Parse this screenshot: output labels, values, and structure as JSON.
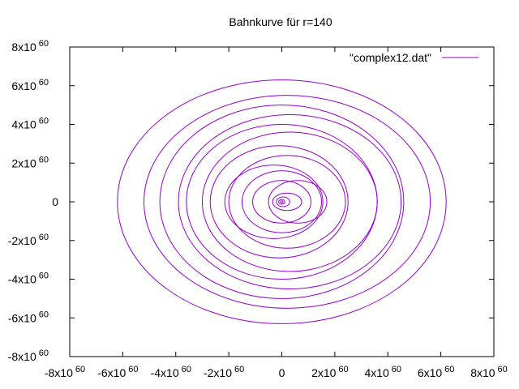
{
  "chart_data": {
    "type": "line",
    "title": "Bahnkurve für r=140",
    "xlabel": "",
    "ylabel": "",
    "xlim": [
      -8e+60,
      8e+60
    ],
    "ylim": [
      -8e+60,
      8e+60
    ],
    "grid": false,
    "legend": "top-right",
    "x_ticks": [
      {
        "mant": "-8x10",
        "exp": "60",
        "value": -8e+60
      },
      {
        "mant": "-6x10",
        "exp": "60",
        "value": -6e+60
      },
      {
        "mant": "-4x10",
        "exp": "60",
        "value": -4e+60
      },
      {
        "mant": "-2x10",
        "exp": "60",
        "value": -2e+60
      },
      {
        "mant": "0",
        "exp": "",
        "value": 0
      },
      {
        "mant": "2x10",
        "exp": "60",
        "value": 2e+60
      },
      {
        "mant": "4x10",
        "exp": "60",
        "value": 4e+60
      },
      {
        "mant": "6x10",
        "exp": "60",
        "value": 6e+60
      },
      {
        "mant": "8x10",
        "exp": "60",
        "value": 8e+60
      }
    ],
    "y_ticks": [
      {
        "mant": "8x10",
        "exp": "60",
        "value": 8e+60
      },
      {
        "mant": "6x10",
        "exp": "60",
        "value": 6e+60
      },
      {
        "mant": "4x10",
        "exp": "60",
        "value": 4e+60
      },
      {
        "mant": "2x10",
        "exp": "60",
        "value": 2e+60
      },
      {
        "mant": "0",
        "exp": "",
        "value": 0
      },
      {
        "mant": "-2x10",
        "exp": "60",
        "value": -2e+60
      },
      {
        "mant": "-4x10",
        "exp": "60",
        "value": -4e+60
      },
      {
        "mant": "-6x10",
        "exp": "60",
        "value": -6e+60
      },
      {
        "mant": "-8x10",
        "exp": "60",
        "value": -8e+60
      }
    ],
    "series": [
      {
        "name": "\"complex12.dat\"",
        "color": "#9400d3",
        "orbits": [
          {
            "cx": 0.0,
            "cy": 0.0,
            "rx": 6.2e+60,
            "ry": 6.3e+60
          },
          {
            "cx": 2e+59,
            "cy": 0.0,
            "rx": 5.4e+60,
            "ry": 5.5e+60
          },
          {
            "cx": 0.0,
            "cy": 0.0,
            "rx": 4.6e+60,
            "ry": 5e+60
          },
          {
            "cx": 3e+59,
            "cy": 0.0,
            "rx": 4.2e+60,
            "ry": 4.5e+60
          },
          {
            "cx": 0.0,
            "cy": 0.0,
            "rx": 3.6e+60,
            "ry": 4e+60
          },
          {
            "cx": 3e+59,
            "cy": 0.0,
            "rx": 3.3e+60,
            "ry": 3.6e+60
          },
          {
            "cx": -1e+59,
            "cy": 0.0,
            "rx": 2.6e+60,
            "ry": 2.9e+60
          },
          {
            "cx": 2e+59,
            "cy": 0.0,
            "rx": 2.2e+60,
            "ry": 2.4e+60
          },
          {
            "cx": -3e+59,
            "cy": 0.0,
            "rx": 1.85e+60,
            "ry": 1.9e+60
          },
          {
            "cx": 0.0,
            "cy": 0.0,
            "rx": 1.5e+60,
            "ry": 1.6e+60
          },
          {
            "cx": 0.0,
            "cy": 0.0,
            "rx": 1.1e+60,
            "ry": 1.1e+60
          },
          {
            "cx": 6e+59,
            "cy": 0.0,
            "rx": 1.1e+60,
            "ry": 1.1e+60
          },
          {
            "cx": 2e+59,
            "cy": 0.0,
            "rx": 5.5e+59,
            "ry": 4.5e+59
          },
          {
            "cx": 5e+58,
            "cy": 0.0,
            "rx": 2.5e+59,
            "ry": 2.5e+59
          },
          {
            "cx": 0.0,
            "cy": 0.0,
            "rx": 1.2e+59,
            "ry": 1.2e+59
          },
          {
            "cx": 0.0,
            "cy": 0.0,
            "rx": 5e+58,
            "ry": 5e+58
          }
        ]
      }
    ]
  }
}
